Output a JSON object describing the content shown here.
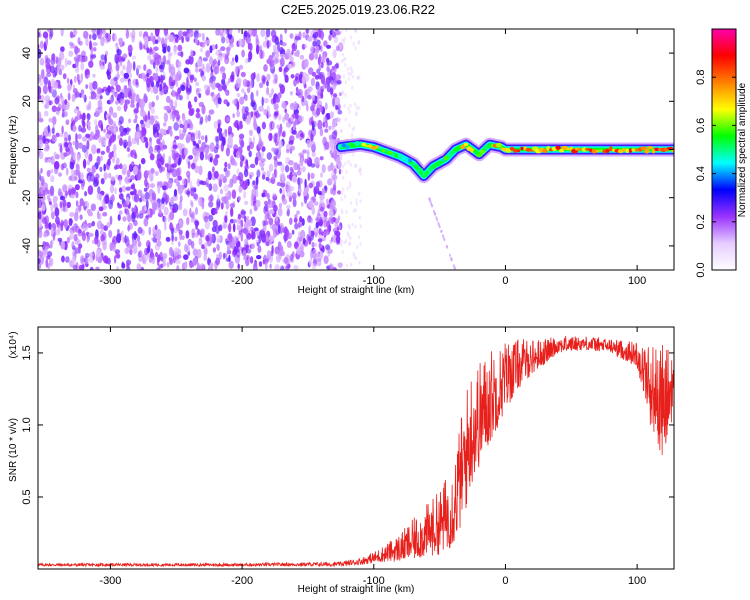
{
  "title": "C2E5.2025.019.23.06.R22",
  "chart_data": [
    {
      "type": "heatmap",
      "xlabel": "Height of straight line (km)",
      "ylabel": "Frequency (Hz)",
      "xlim": [
        -355,
        128
      ],
      "ylim": [
        -50,
        50
      ],
      "xticks": [
        -300,
        -200,
        -100,
        0,
        100
      ],
      "yticks": [
        -40,
        -20,
        0,
        20,
        40
      ],
      "colorbar": {
        "label": "Normalized spectral amplitude",
        "range": [
          0,
          1
        ],
        "ticks": [
          "0.0",
          "0.2",
          "0.4",
          "0.6",
          "0.8"
        ],
        "colors": [
          "#ffffff",
          "#e6ccff",
          "#9933ff",
          "#0000ff",
          "#00ffff",
          "#00ff00",
          "#ffff00",
          "#ff8000",
          "#ff0000",
          "#ff00aa"
        ]
      },
      "noise_region": {
        "x": [
          -355,
          -125
        ],
        "level": "low-moderate, random"
      },
      "signal_track": [
        {
          "x": -125,
          "y": 1,
          "amp": 0.5
        },
        {
          "x": -110,
          "y": 2,
          "amp": 0.6
        },
        {
          "x": -100,
          "y": 1,
          "amp": 0.7
        },
        {
          "x": -90,
          "y": -1,
          "amp": 0.55
        },
        {
          "x": -80,
          "y": -3,
          "amp": 0.5
        },
        {
          "x": -70,
          "y": -6,
          "amp": 0.55
        },
        {
          "x": -62,
          "y": -11,
          "amp": 0.6
        },
        {
          "x": -55,
          "y": -7,
          "amp": 0.5
        },
        {
          "x": -45,
          "y": -4,
          "amp": 0.55
        },
        {
          "x": -38,
          "y": 0,
          "amp": 0.6
        },
        {
          "x": -30,
          "y": 2,
          "amp": 0.8
        },
        {
          "x": -20,
          "y": -2,
          "amp": 0.6
        },
        {
          "x": -12,
          "y": 2,
          "amp": 0.65
        },
        {
          "x": -3,
          "y": 1,
          "amp": 0.8
        },
        {
          "x": 0,
          "y": 0,
          "amp": 0.85
        },
        {
          "x": 20,
          "y": 0,
          "amp": 0.85
        },
        {
          "x": 50,
          "y": 0,
          "amp": 0.8
        },
        {
          "x": 80,
          "y": 0,
          "amp": 0.8
        },
        {
          "x": 105,
          "y": 0,
          "amp": 0.9
        },
        {
          "x": 128,
          "y": 0,
          "amp": 0.8
        }
      ],
      "faint_track": [
        {
          "x": -58,
          "y": -20
        },
        {
          "x": -48,
          "y": -35
        },
        {
          "x": -38,
          "y": -50
        }
      ]
    },
    {
      "type": "line",
      "xlabel": "Height of straight line (km)",
      "ylabel": "SNR (10 * v/v)",
      "yscale_label": "(x10⁴)",
      "xlim": [
        -355,
        128
      ],
      "ylim": [
        0,
        1.68
      ],
      "xticks": [
        -300,
        -200,
        -100,
        0,
        100
      ],
      "yticks": [
        0.5,
        1.0,
        1.5
      ],
      "ytick_labels": [
        "0.5",
        "1.0",
        "1.5"
      ],
      "color": "#e8201c",
      "envelope": {
        "x": [
          -355,
          -200,
          -125,
          -110,
          -100,
          -90,
          -80,
          -70,
          -60,
          -50,
          -40,
          -35,
          -30,
          -25,
          -20,
          -15,
          -10,
          -5,
          0,
          10,
          20,
          30,
          40,
          60,
          80,
          100,
          110,
          120,
          128
        ],
        "low": [
          0.02,
          0.02,
          0.02,
          0.03,
          0.04,
          0.05,
          0.05,
          0.06,
          0.08,
          0.1,
          0.15,
          0.25,
          0.4,
          0.6,
          0.7,
          0.8,
          0.9,
          1.0,
          1.1,
          1.25,
          1.35,
          1.42,
          1.5,
          1.52,
          1.5,
          1.4,
          1.0,
          0.75,
          1.1
        ],
        "high": [
          0.04,
          0.04,
          0.05,
          0.08,
          0.12,
          0.18,
          0.25,
          0.35,
          0.45,
          0.55,
          0.75,
          1.0,
          1.25,
          1.45,
          1.45,
          1.5,
          1.55,
          1.55,
          1.6,
          1.6,
          1.6,
          1.6,
          1.62,
          1.62,
          1.6,
          1.58,
          1.58,
          1.56,
          1.55
        ]
      }
    }
  ]
}
